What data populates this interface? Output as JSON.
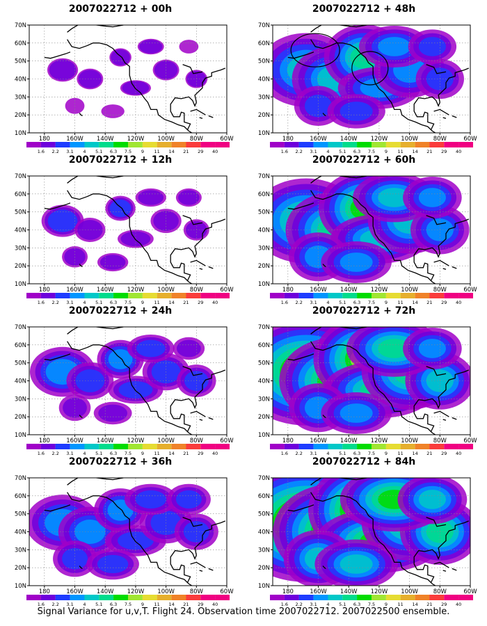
{
  "panels": [
    {
      "id": "p00",
      "title": "2007022712 + 00h",
      "intensity": 0.35,
      "ellipses": []
    },
    {
      "id": "p48",
      "title": "2007022712 + 48h",
      "intensity": 1.6,
      "ellipses": [
        "ellipse-1",
        "ellipse-2"
      ]
    },
    {
      "id": "p12",
      "title": "2007022712 + 12h",
      "intensity": 0.6,
      "ellipses": []
    },
    {
      "id": "p60",
      "title": "2007022712 + 60h",
      "intensity": 2.1,
      "ellipses": []
    },
    {
      "id": "p24",
      "title": "2007022712 + 24h",
      "intensity": 1.0,
      "ellipses": []
    },
    {
      "id": "p72",
      "title": "2007022712 + 72h",
      "intensity": 2.5,
      "ellipses": []
    },
    {
      "id": "p36",
      "title": "2007022712 + 36h",
      "intensity": 1.2,
      "ellipses": []
    },
    {
      "id": "p84",
      "title": "2007022712 + 84h",
      "intensity": 2.9,
      "ellipses": []
    }
  ],
  "axis": {
    "y_ticks": [
      "10N",
      "20N",
      "30N",
      "40N",
      "50N",
      "60N",
      "70N"
    ],
    "x_ticks": [
      "180",
      "160W",
      "140W",
      "120W",
      "100W",
      "80W",
      "60W"
    ]
  },
  "colorbar": {
    "labels": [
      "1.6",
      "2.2",
      "3.1",
      "4",
      "5.1",
      "6.3",
      "7.5",
      "9",
      "11",
      "14",
      "21",
      "29",
      "40"
    ],
    "colors": [
      "#a000c8",
      "#6e00dc",
      "#1e3cff",
      "#0096ff",
      "#00c8c8",
      "#00dc8c",
      "#00dc00",
      "#a0e632",
      "#e6dc32",
      "#e6af2d",
      "#f08228",
      "#fa3c3c",
      "#f00082"
    ]
  },
  "footer": "Signal Variance for u,v,T. Flight 24. Observation time 2007022712. 2007022500 ensemble."
}
